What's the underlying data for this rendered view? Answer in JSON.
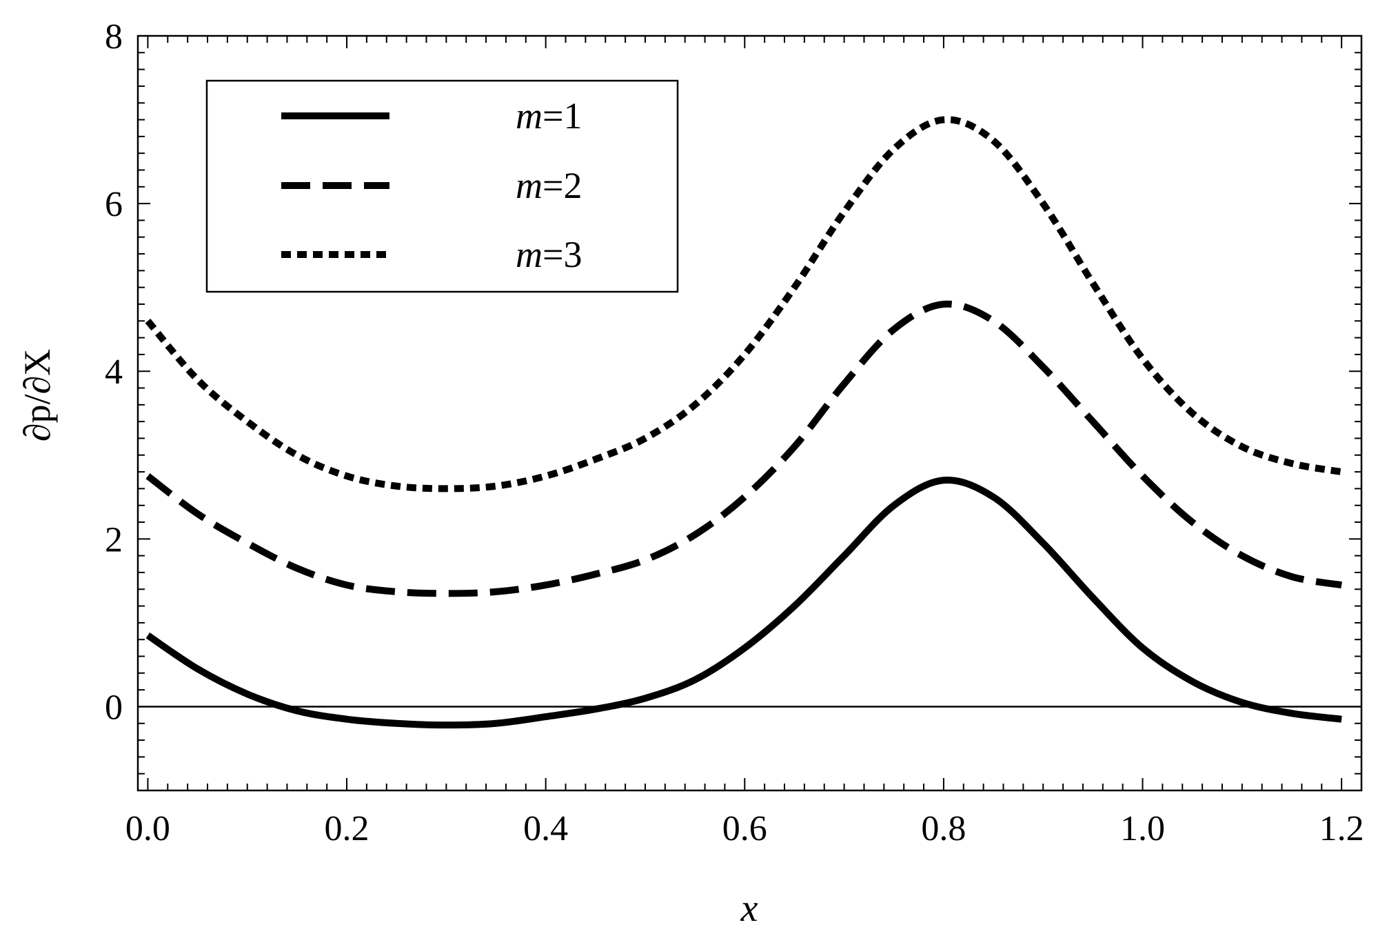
{
  "chart_data": {
    "type": "line",
    "title": "",
    "xlabel": "x",
    "ylabel": "∂p/∂X",
    "xlim": [
      -0.01,
      1.22
    ],
    "ylim": [
      -1,
      8
    ],
    "x_ticks": [
      0.0,
      0.2,
      0.4,
      0.6,
      0.8,
      1.0,
      1.2
    ],
    "x_tick_labels": [
      "0.0",
      "0.2",
      "0.4",
      "0.6",
      "0.8",
      "1.0",
      "1.2"
    ],
    "y_ticks": [
      0,
      2,
      4,
      6,
      8
    ],
    "y_tick_labels": [
      "0",
      "2",
      "4",
      "6",
      "8"
    ],
    "grid": false,
    "legend_position": "top-left",
    "reference_line": {
      "y": 0
    },
    "series": [
      {
        "name": "m=1",
        "name_italic": "m",
        "name_rest": "=1",
        "style": "solid",
        "color": "#000000",
        "x": [
          0.0,
          0.05,
          0.1,
          0.15,
          0.2,
          0.25,
          0.3,
          0.35,
          0.4,
          0.45,
          0.5,
          0.55,
          0.6,
          0.65,
          0.7,
          0.75,
          0.8,
          0.85,
          0.9,
          0.95,
          1.0,
          1.05,
          1.1,
          1.15,
          1.2
        ],
        "y": [
          0.85,
          0.45,
          0.15,
          -0.05,
          -0.15,
          -0.2,
          -0.22,
          -0.2,
          -0.12,
          -0.03,
          0.1,
          0.32,
          0.7,
          1.2,
          1.8,
          2.4,
          2.7,
          2.5,
          1.95,
          1.3,
          0.7,
          0.3,
          0.05,
          -0.08,
          -0.15
        ]
      },
      {
        "name": "m=2",
        "name_italic": "m",
        "name_rest": "=2",
        "style": "dashed",
        "color": "#000000",
        "x": [
          0.0,
          0.05,
          0.1,
          0.15,
          0.2,
          0.25,
          0.3,
          0.35,
          0.4,
          0.45,
          0.5,
          0.55,
          0.6,
          0.65,
          0.7,
          0.75,
          0.8,
          0.85,
          0.9,
          0.95,
          1.0,
          1.05,
          1.1,
          1.15,
          1.2
        ],
        "y": [
          2.75,
          2.3,
          1.95,
          1.65,
          1.45,
          1.37,
          1.35,
          1.37,
          1.45,
          1.58,
          1.75,
          2.05,
          2.5,
          3.1,
          3.85,
          4.5,
          4.8,
          4.6,
          4.05,
          3.4,
          2.75,
          2.2,
          1.8,
          1.55,
          1.45
        ]
      },
      {
        "name": "m=3",
        "name_italic": "m",
        "name_rest": "=3",
        "style": "dotted",
        "color": "#000000",
        "x": [
          0.0,
          0.05,
          0.1,
          0.15,
          0.2,
          0.25,
          0.3,
          0.35,
          0.4,
          0.45,
          0.5,
          0.55,
          0.6,
          0.65,
          0.7,
          0.75,
          0.8,
          0.85,
          0.9,
          0.95,
          1.0,
          1.05,
          1.1,
          1.15,
          1.2
        ],
        "y": [
          4.6,
          3.9,
          3.4,
          3.0,
          2.75,
          2.63,
          2.6,
          2.63,
          2.75,
          2.95,
          3.2,
          3.6,
          4.2,
          5.0,
          5.9,
          6.65,
          7.0,
          6.75,
          6.0,
          5.05,
          4.15,
          3.5,
          3.1,
          2.9,
          2.8
        ]
      }
    ]
  }
}
